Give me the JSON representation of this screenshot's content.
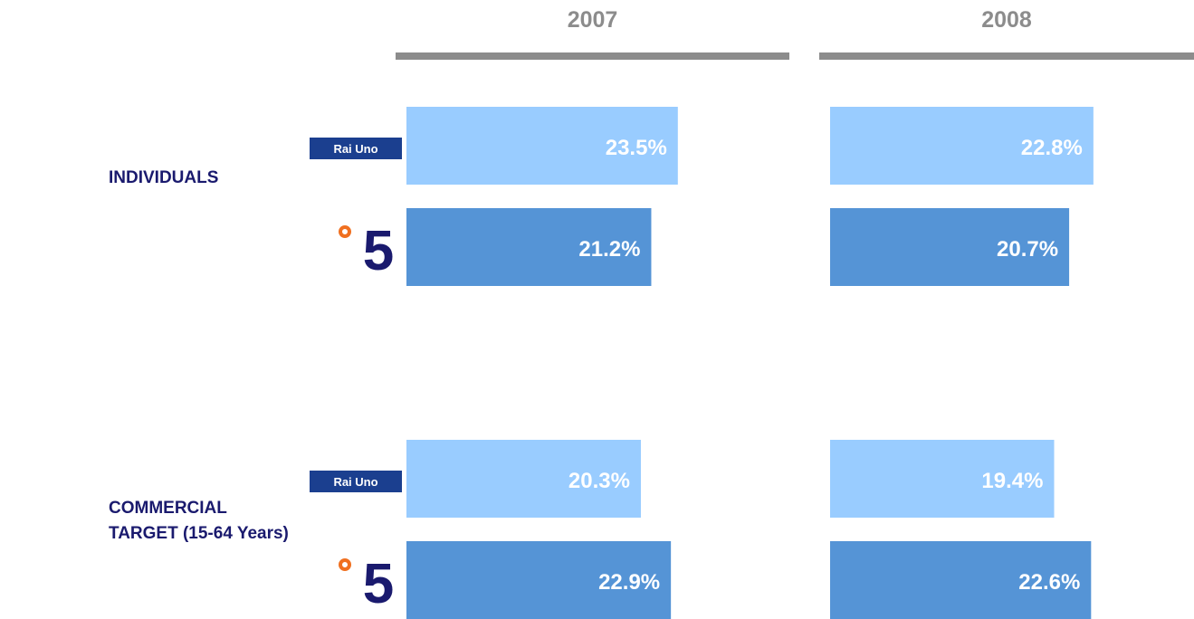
{
  "chart_data": {
    "type": "bar",
    "orientation": "horizontal",
    "panels": [
      "2007",
      "2008"
    ],
    "categories": [
      "INDIVIDUALS",
      "COMMERCIAL TARGET (15-64 Years)"
    ],
    "series": [
      {
        "name": "Rai Uno",
        "color": "#99ccff",
        "values": [
          [
            23.5,
            22.8
          ],
          [
            20.3,
            19.4
          ]
        ],
        "value_labels": [
          [
            "23.5%",
            "22.8%"
          ],
          [
            "20.3%",
            "19.4%"
          ]
        ]
      },
      {
        "name": "5",
        "color": "#5594d6",
        "values": [
          [
            21.2,
            20.7
          ],
          [
            22.9,
            22.6
          ]
        ],
        "value_labels": [
          [
            "21.2%",
            "20.7%"
          ],
          [
            "22.9%",
            "22.6%"
          ]
        ]
      }
    ],
    "xlim": [
      0,
      33
    ]
  }
}
